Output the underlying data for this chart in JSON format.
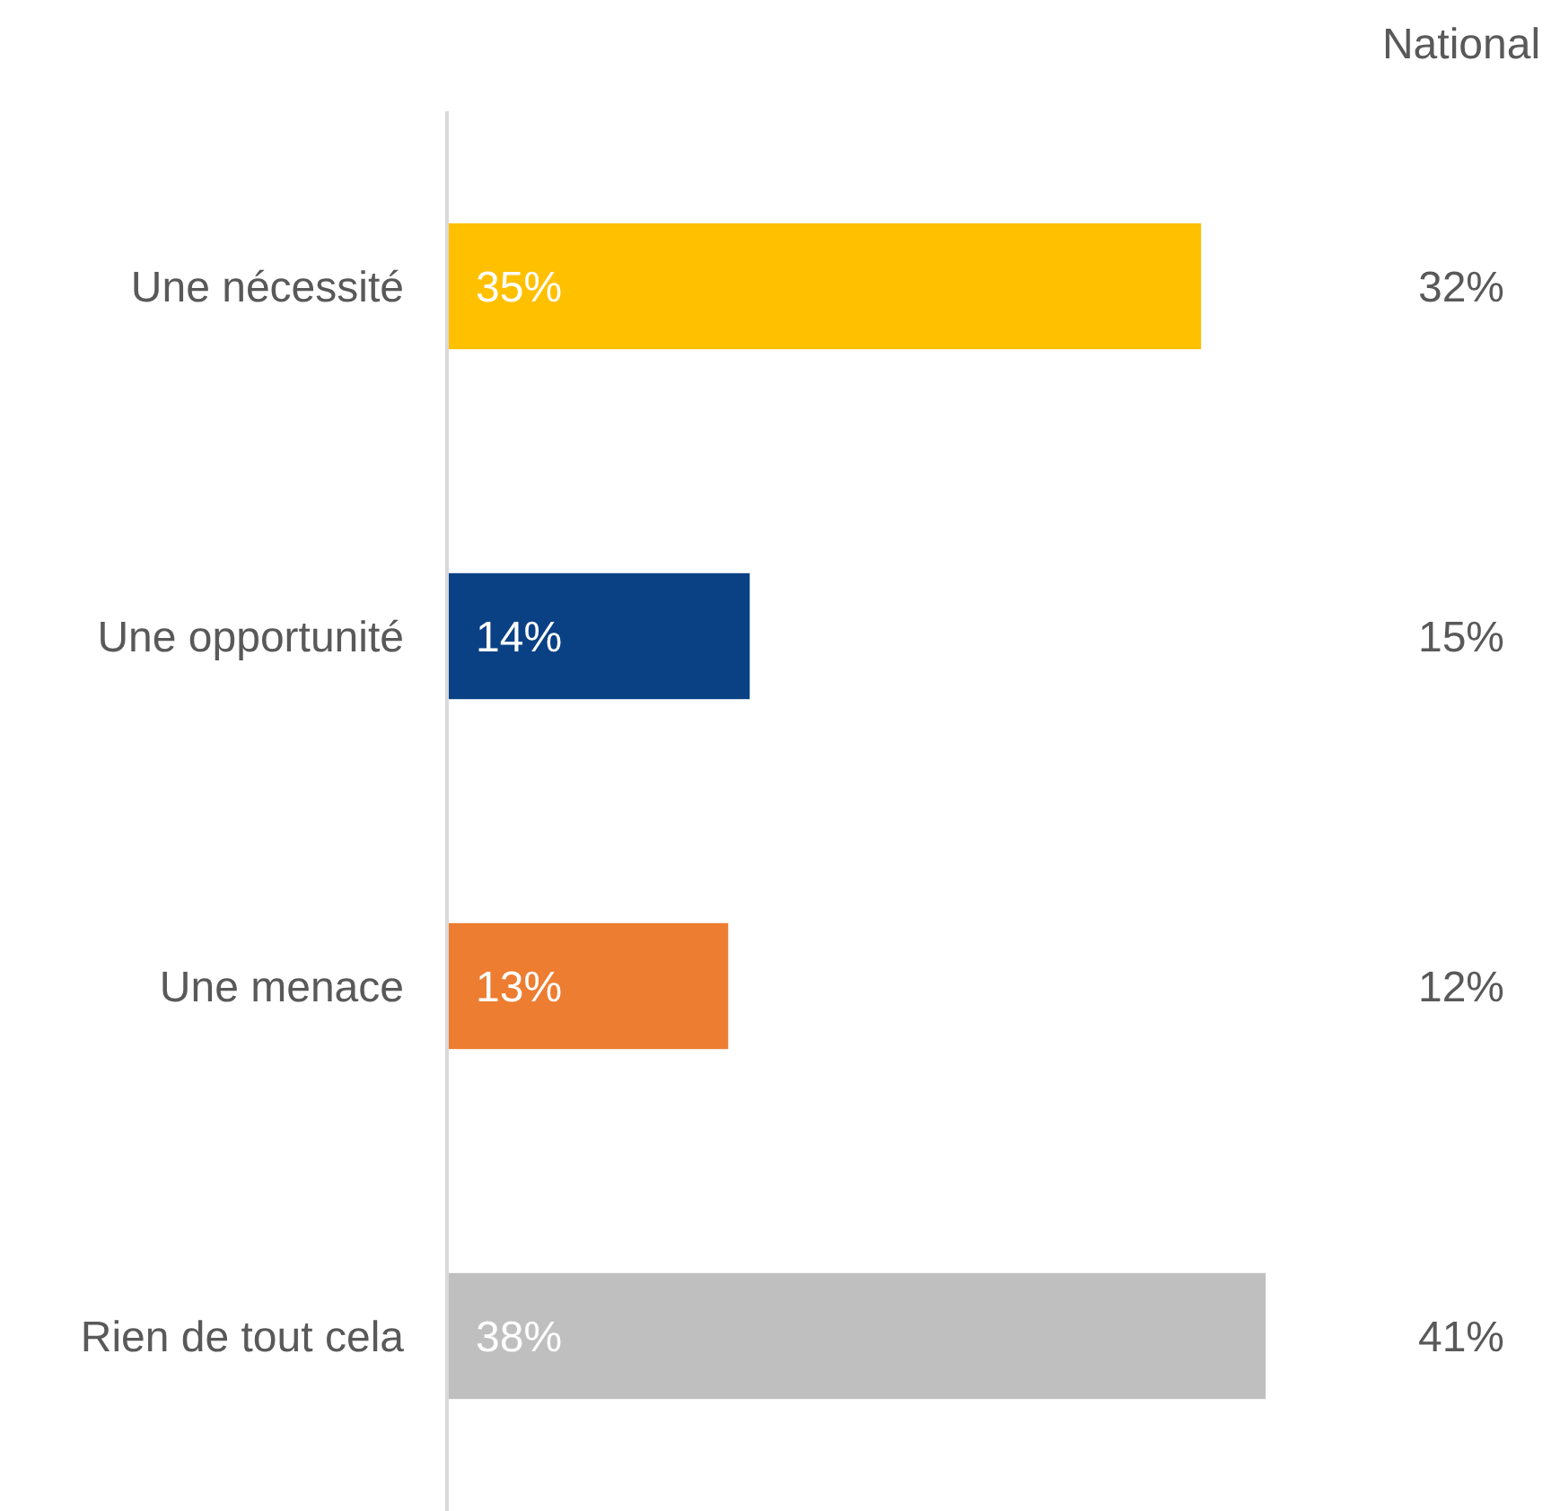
{
  "chart_data": {
    "type": "bar",
    "orientation": "horizontal",
    "categories": [
      "Une nécessité",
      "Une opportunité",
      "Une menace",
      "Rien de tout cela"
    ],
    "values": [
      35,
      14,
      13,
      38
    ],
    "colors": [
      "#ffc000",
      "#0a4185",
      "#ed7d31",
      "#bfbfbf"
    ],
    "value_labels": [
      "35%",
      "14%",
      "13%",
      "38%"
    ],
    "annotations": [
      "National",
      "32%",
      "15%",
      "12%",
      "41%"
    ]
  }
}
